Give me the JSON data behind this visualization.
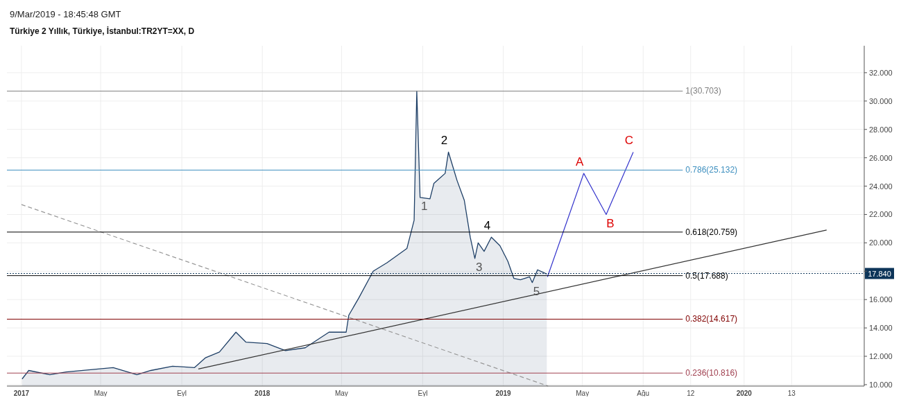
{
  "chart_data": {
    "type": "area",
    "title": "Türkiye 2 Yıllık, Türkiye, İstanbul:TR2YT=XX, D",
    "annotations": [
      "9/Mar/2019 - 18:45:48 GMT",
      {
        "text": "1",
        "x": "2018-08-28",
        "y": 23.2
      },
      {
        "text": "2",
        "x": "2018-10-10",
        "y": 26.4
      },
      {
        "text": "3",
        "x": "2018-11-19",
        "y": 18.9
      },
      {
        "text": "4",
        "x": "2018-12-14",
        "y": 20.4
      },
      {
        "text": "5",
        "x": "2019-02-14",
        "y": 17.2
      },
      {
        "text": "A",
        "x": "2019-05-03",
        "y": 24.9
      },
      {
        "text": "B",
        "x": "2019-06-06",
        "y": 22.0
      },
      {
        "text": "C",
        "x": "2019-07-17",
        "y": 26.4
      }
    ],
    "series": [
      {
        "color": "#1e3f66",
        "x": [
          "2017-01-02",
          "2017-01-12",
          "2017-02-13",
          "2017-03-10",
          "2017-05-20",
          "2017-06-25",
          "2017-07-16",
          "2017-08-18",
          "2017-09-20",
          "2017-10-07",
          "2017-10-28",
          "2017-11-22",
          "2017-12-07",
          "2018-01-08",
          "2018-02-05",
          "2018-03-07",
          "2018-04-12",
          "2018-05-08",
          "2018-05-12",
          "2018-05-27",
          "2018-06-18",
          "2018-07-09",
          "2018-08-08",
          "2018-08-19",
          "2018-08-23",
          "2018-08-28",
          "2018-09-12",
          "2018-09-18",
          "2018-10-05",
          "2018-10-10",
          "2018-10-23",
          "2018-11-03",
          "2018-11-12",
          "2018-11-19",
          "2018-11-24",
          "2018-12-03",
          "2018-12-14",
          "2018-12-27",
          "2019-01-08",
          "2019-01-17",
          "2019-01-27",
          "2019-02-10",
          "2019-02-14",
          "2019-02-22",
          "2019-03-08"
        ],
        "values": [
          10.4,
          11.0,
          10.7,
          10.9,
          11.2,
          10.7,
          11.0,
          11.3,
          11.2,
          11.9,
          12.3,
          13.7,
          13.0,
          12.9,
          12.4,
          12.6,
          13.7,
          13.7,
          14.9,
          16.1,
          18.0,
          18.6,
          19.6,
          21.6,
          30.7,
          23.2,
          23.1,
          24.2,
          24.9,
          26.4,
          24.4,
          23.0,
          20.4,
          18.9,
          20.0,
          19.4,
          20.4,
          19.8,
          18.7,
          17.5,
          17.4,
          17.6,
          17.2,
          18.1,
          17.8
        ]
      },
      {
        "type": "line",
        "color": "#999999",
        "line_style": "dashed",
        "x": [
          "2017-01-01",
          "2019-03-10"
        ],
        "values": [
          22.7,
          9.9
        ]
      },
      {
        "type": "line",
        "color": "#333333",
        "x": [
          "2017-09-26",
          "2020-05-05"
        ],
        "values": [
          11.1,
          20.9
        ]
      },
      {
        "type": "line",
        "color": "#3333cc",
        "x": [
          "2019-03-09",
          "2019-05-03",
          "2019-06-06",
          "2019-07-17"
        ],
        "values": [
          17.6,
          24.9,
          22.0,
          26.4
        ]
      }
    ],
    "xlim": [
      "2016-12-10",
      "2020-07-01"
    ],
    "xticks": [
      {
        "value": "2017-01-01",
        "label": "2017"
      },
      {
        "value": "2017-05-01",
        "label": "May"
      },
      {
        "value": "2017-09-01",
        "label": "Eyl"
      },
      {
        "value": "2018-01-01",
        "label": "2018"
      },
      {
        "value": "2018-05-01",
        "label": "May"
      },
      {
        "value": "2018-09-01",
        "label": "Eyl"
      },
      {
        "value": "2019-01-01",
        "label": "2019"
      },
      {
        "value": "2019-05-01",
        "label": "May"
      },
      {
        "value": "2019-08-01",
        "label": "Ağu"
      },
      {
        "value": "2019-10-12",
        "label": "12"
      },
      {
        "value": "2020-01-01",
        "label": "2020"
      },
      {
        "value": "2020-03-13",
        "label": "13"
      }
    ],
    "ylim": [
      9.9,
      33.9
    ],
    "yticks": [
      {
        "value": 10,
        "label": "10.000"
      },
      {
        "value": 12,
        "label": "12.000"
      },
      {
        "value": 14,
        "label": "14.000"
      },
      {
        "value": 16,
        "label": "16.000"
      },
      {
        "value": 18,
        "label": null
      },
      {
        "value": 20,
        "label": "20.000"
      },
      {
        "value": 22,
        "label": "22.000"
      },
      {
        "value": 24,
        "label": "24.000"
      },
      {
        "value": 26,
        "label": "26.000"
      },
      {
        "value": 28,
        "label": "28.000"
      },
      {
        "value": 30,
        "label": "30.000"
      },
      {
        "value": 32,
        "label": "32.000"
      }
    ],
    "ref_lines": [
      {
        "axis": "y",
        "value": 30.703,
        "label": "1(30.703)",
        "color": "#808080"
      },
      {
        "axis": "y",
        "value": 25.132,
        "label": "0.786(25.132)",
        "color": "#3d8fbf"
      },
      {
        "axis": "y",
        "value": 20.759,
        "label": "0.618(20.759)",
        "color": "#000000"
      },
      {
        "axis": "y",
        "value": 17.688,
        "label": "0.5(17.688)",
        "color": "#000000"
      },
      {
        "axis": "y",
        "value": 14.617,
        "label": "0.382(14.617)",
        "color": "#800000"
      },
      {
        "axis": "y",
        "value": 10.816,
        "label": "0.236(10.816)",
        "color": "#a04050"
      },
      {
        "axis": "y",
        "value": 17.84,
        "label": "17.840",
        "color": "#0d3559",
        "line_style": "dotted"
      }
    ],
    "grid": true
  }
}
